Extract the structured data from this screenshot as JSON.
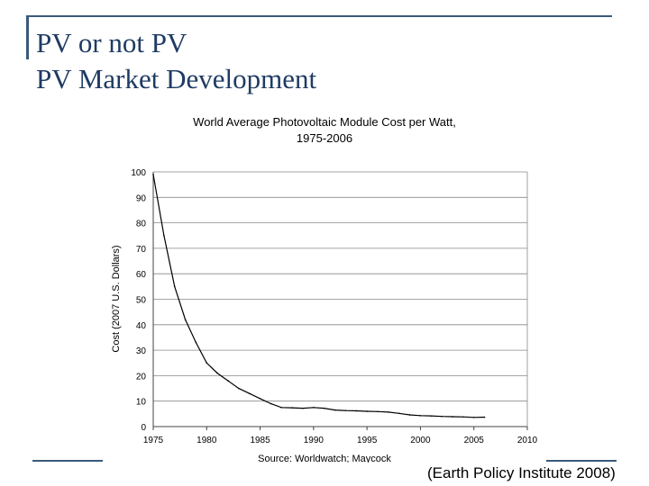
{
  "slide": {
    "title_line1": "PV or not PV",
    "title_line2": "PV Market Development",
    "source_note": "(Earth Policy Institute 2008)",
    "accent_color": "#3a5a7a",
    "title_color": "#1f3b63"
  },
  "chart_data": {
    "type": "line",
    "title": "World Average Photovoltaic Module Cost per Watt,",
    "subtitle": "1975-2006",
    "xlabel": "",
    "ylabel": "Cost (2007 U.S. Dollars)",
    "source": "Source: Worldwatch; Maycock",
    "xlim": [
      1975,
      2010
    ],
    "ylim": [
      0,
      100
    ],
    "x_ticks": [
      1975,
      1980,
      1985,
      1990,
      1995,
      2000,
      2005,
      2010
    ],
    "x_tick_labels": [
      "1975",
      "1980",
      "1985",
      "1990",
      "1995",
      "2000",
      "2005",
      "2010"
    ],
    "y_ticks": [
      0,
      10,
      20,
      30,
      40,
      50,
      60,
      70,
      80,
      90,
      100
    ],
    "y_tick_labels": [
      "0",
      "10",
      "20",
      "30",
      "40",
      "50",
      "60",
      "70",
      "80",
      "90",
      "100"
    ],
    "grid": true,
    "series": [
      {
        "x": [
          1975,
          1976,
          1977,
          1978,
          1979,
          1980,
          1981,
          1982,
          1983,
          1984,
          1985,
          1986,
          1987,
          1988,
          1989,
          1990,
          1991,
          1992,
          1993,
          1994,
          1995,
          1996,
          1997,
          1998,
          1999,
          2000,
          2001,
          2002,
          2003,
          2004,
          2005,
          2006
        ],
        "values": [
          99,
          75,
          55,
          42,
          33,
          25,
          21,
          18,
          15,
          13,
          11,
          9,
          7.5,
          7.4,
          7.2,
          7.5,
          7.2,
          6.5,
          6.3,
          6.2,
          6.0,
          5.9,
          5.7,
          5.2,
          4.6,
          4.3,
          4.2,
          4.0,
          3.9,
          3.8,
          3.6,
          3.7
        ],
        "color": "#000000"
      }
    ]
  }
}
